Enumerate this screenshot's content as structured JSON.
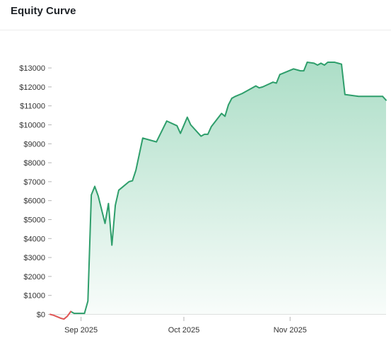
{
  "panel": {
    "title": "Equity Curve"
  },
  "chart_data": {
    "type": "area",
    "title": "Equity Curve",
    "xlabel": "",
    "ylabel": "",
    "x_type": "date",
    "xlim": [
      "2025-08-23",
      "2025-11-29"
    ],
    "ylim": [
      0,
      13600
    ],
    "y_ticks": [
      0,
      1000,
      2000,
      3000,
      4000,
      5000,
      6000,
      7000,
      8000,
      9000,
      10000,
      11000,
      12000,
      13000
    ],
    "y_tick_labels": [
      "$0",
      "$1000",
      "$2000",
      "$3000",
      "$4000",
      "$5000",
      "$6000",
      "$7000",
      "$8000",
      "$9000",
      "$10000",
      "$11000",
      "$12000",
      "$13000"
    ],
    "x_ticks": [
      "2025-09-01",
      "2025-10-01",
      "2025-11-01"
    ],
    "x_tick_labels": [
      "Sep 2025",
      "Oct 2025",
      "Nov 2025"
    ],
    "grid": false,
    "legend": "none",
    "colors": {
      "line": "#2e9e6b",
      "fill": "#a8dcc4",
      "negative": "#e05656"
    },
    "series": [
      {
        "x": [
          "2025-08-23",
          "2025-08-24",
          "2025-08-26",
          "2025-08-27",
          "2025-08-28",
          "2025-08-29",
          "2025-08-30",
          "2025-08-31",
          "2025-09-02",
          "2025-09-03",
          "2025-09-04",
          "2025-09-05",
          "2025-09-06",
          "2025-09-08",
          "2025-09-09",
          "2025-09-10",
          "2025-09-11",
          "2025-09-12",
          "2025-09-13",
          "2025-09-15",
          "2025-09-16",
          "2025-09-17",
          "2025-09-19",
          "2025-09-23",
          "2025-09-26",
          "2025-09-29",
          "2025-09-30",
          "2025-10-02",
          "2025-10-03",
          "2025-10-06",
          "2025-10-07",
          "2025-10-08",
          "2025-10-09",
          "2025-10-12",
          "2025-10-13",
          "2025-10-14",
          "2025-10-15",
          "2025-10-16",
          "2025-10-18",
          "2025-10-22",
          "2025-10-23",
          "2025-10-24",
          "2025-10-27",
          "2025-10-28",
          "2025-10-29",
          "2025-11-02",
          "2025-11-03",
          "2025-11-04",
          "2025-11-05",
          "2025-11-06",
          "2025-11-08",
          "2025-11-09",
          "2025-11-10",
          "2025-11-11",
          "2025-11-12",
          "2025-11-14",
          "2025-11-15",
          "2025-11-16",
          "2025-11-17",
          "2025-11-21",
          "2025-11-28",
          "2025-11-29"
        ],
        "values": [
          0,
          -50,
          -200,
          -250,
          -100,
          150,
          50,
          50,
          50,
          700,
          6300,
          6750,
          6250,
          4800,
          5850,
          3650,
          5750,
          6550,
          6700,
          7000,
          7050,
          7600,
          9300,
          9100,
          10200,
          9950,
          9550,
          10400,
          10000,
          9400,
          9500,
          9500,
          9900,
          10600,
          10450,
          11050,
          11400,
          11500,
          11650,
          12050,
          11950,
          12000,
          12250,
          12200,
          12650,
          12950,
          12900,
          12850,
          12850,
          13300,
          13250,
          13150,
          13250,
          13150,
          13300,
          13300,
          13250,
          13200,
          11600,
          11500,
          11500,
          11300
        ]
      }
    ]
  }
}
